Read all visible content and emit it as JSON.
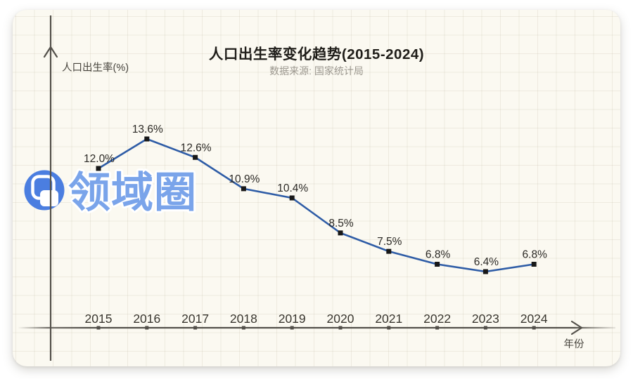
{
  "header": {
    "title": "人口出生率变化趋势(2015-2024)",
    "subtitle": "数据来源: 国家统计局"
  },
  "watermark": {
    "text": "领域圈",
    "icon": "overlapping-rounded-squares-icon",
    "circle_color": "#4b7ee0",
    "text_color": "#7aa4ea",
    "outline_color": "#ffffff"
  },
  "chart_data": {
    "type": "line",
    "title": "人口出生率变化趋势(2015-2024)",
    "subtitle": "数据来源: 国家统计局",
    "xlabel": "年份",
    "ylabel": "人口出生率(%)",
    "categories": [
      "2015",
      "2016",
      "2017",
      "2018",
      "2019",
      "2020",
      "2021",
      "2022",
      "2023",
      "2024"
    ],
    "values": [
      12.0,
      13.6,
      12.6,
      10.9,
      10.4,
      8.5,
      7.5,
      6.8,
      6.4,
      6.8
    ],
    "labels": [
      "12.0%",
      "13.6%",
      "12.6%",
      "10.9%",
      "10.4%",
      "8.5%",
      "7.5%",
      "6.8%",
      "6.4%",
      "6.8%"
    ],
    "ylim": [
      3.4,
      20.3
    ],
    "grid": true,
    "legend": false,
    "line_color": "#2e5ca6",
    "marker_color": "#181818",
    "axis_color": "#53504a",
    "label_color": "#2b2925",
    "marker_shape": "square"
  }
}
